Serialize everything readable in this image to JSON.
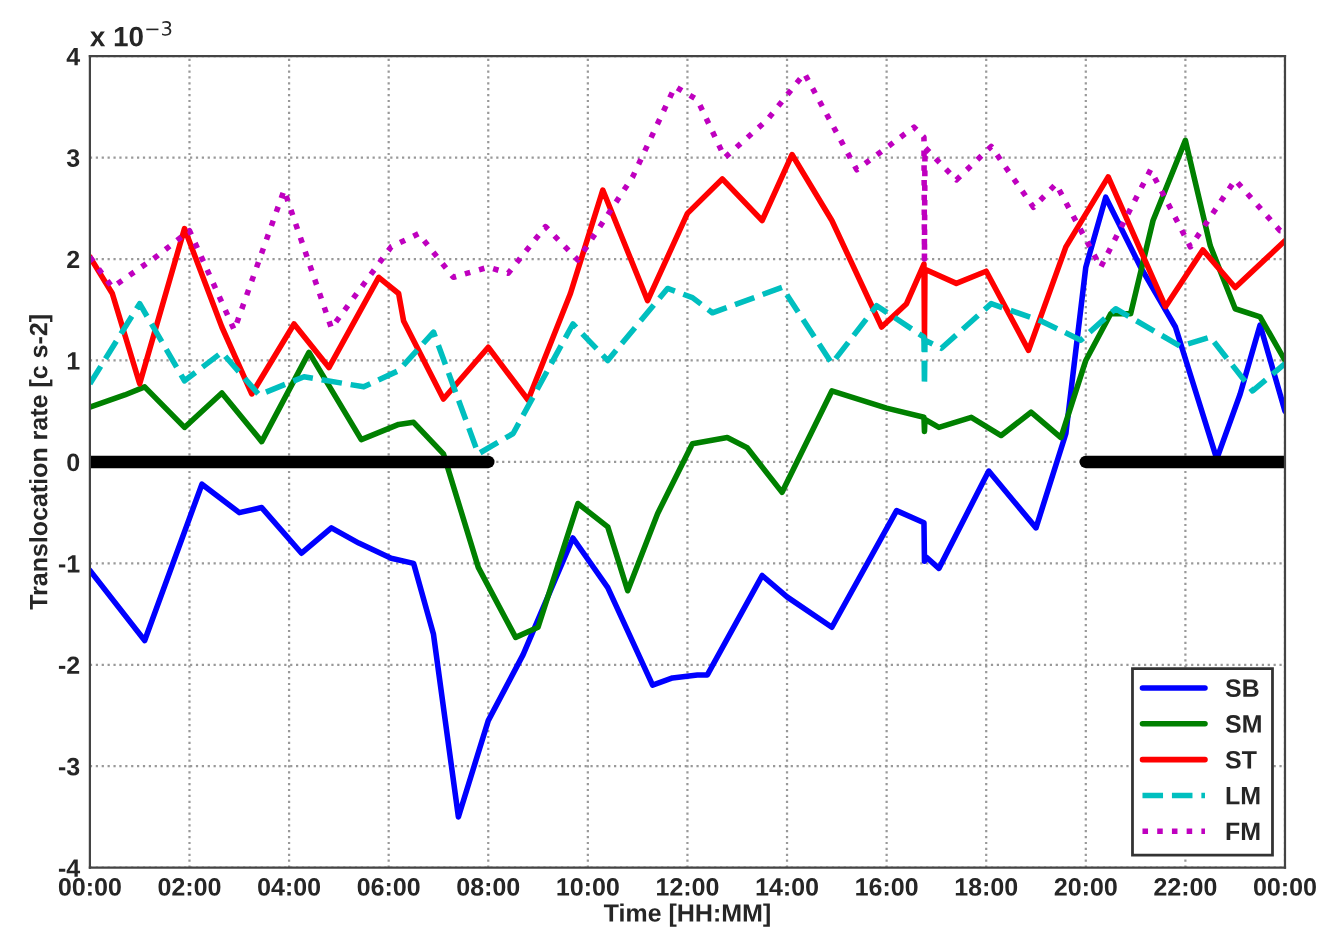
{
  "chart_data": {
    "type": "line",
    "xlabel": "Time [HH:MM]",
    "ylabel": "Translocation rate [c s-2]",
    "annotations": [
      "x 10$^{−3}$"
    ],
    "xlim": [
      0,
      24
    ],
    "ylim": [
      -4,
      4
    ],
    "xticks": [
      {
        "value": 0,
        "label": "00:00"
      },
      {
        "value": 2,
        "label": "02:00"
      },
      {
        "value": 4,
        "label": "04:00"
      },
      {
        "value": 6,
        "label": "06:00"
      },
      {
        "value": 8,
        "label": "08:00"
      },
      {
        "value": 10,
        "label": "10:00"
      },
      {
        "value": 12,
        "label": "12:00"
      },
      {
        "value": 14,
        "label": "14:00"
      },
      {
        "value": 16,
        "label": "16:00"
      },
      {
        "value": 18,
        "label": "18:00"
      },
      {
        "value": 20,
        "label": "20:00"
      },
      {
        "value": 22,
        "label": "22:00"
      },
      {
        "value": 24,
        "label": "00:00"
      }
    ],
    "yticks": [
      -4,
      -3,
      -2,
      -1,
      0,
      1,
      2,
      3,
      4
    ],
    "grid": true,
    "legend": "bottom right",
    "series": [
      {
        "name": "SB",
        "color": "#0000ff",
        "line_style": "solid",
        "x": [
          0,
          1.1,
          2.25,
          3.0,
          3.45,
          4.25,
          4.85,
          5.4,
          6.05,
          6.5,
          6.9,
          7.4,
          8,
          8.7,
          9.7,
          10.4,
          11.3,
          11.7,
          12.2,
          12.4,
          13.5,
          14,
          14.9,
          16.2,
          16.75,
          16.76,
          16.8,
          17.05,
          18.05,
          19.0,
          19.6,
          20,
          20.4,
          21.1,
          21.8,
          22.63,
          23.1,
          23.5,
          24
        ],
        "values": [
          -1.07,
          -1.76,
          -0.22,
          -0.5,
          -0.45,
          -0.9,
          -0.65,
          -0.8,
          -0.95,
          -1.0,
          -1.7,
          -3.5,
          -2.55,
          -1.9,
          -0.75,
          -1.24,
          -2.2,
          -2.13,
          -2.1,
          -2.1,
          -1.12,
          -1.33,
          -1.63,
          -0.48,
          -0.6,
          -0.98,
          -0.94,
          -1.05,
          -0.09,
          -0.65,
          0.28,
          1.92,
          2.61,
          1.92,
          1.33,
          0.03,
          0.67,
          1.35,
          0.5
        ]
      },
      {
        "name": "SM",
        "color": "#008000",
        "line_style": "solid",
        "x": [
          0,
          0.7,
          1.1,
          1.9,
          2.65,
          3.45,
          4.4,
          5.45,
          6.2,
          6.5,
          7.1,
          7.8,
          8.55,
          9.0,
          9.8,
          10.4,
          10.8,
          11.4,
          12.1,
          12.8,
          13.2,
          13.9,
          14.9,
          16,
          16.75,
          16.76,
          16.77,
          17.05,
          17.7,
          18.3,
          18.9,
          19.5,
          20,
          20.5,
          20.9,
          21.35,
          22,
          22.5,
          23,
          23.5,
          24
        ],
        "values": [
          0.54,
          0.66,
          0.74,
          0.34,
          0.68,
          0.2,
          1.08,
          0.22,
          0.37,
          0.39,
          0.08,
          -1.04,
          -1.73,
          -1.63,
          -0.41,
          -0.64,
          -1.27,
          -0.51,
          0.18,
          0.24,
          0.14,
          -0.3,
          0.7,
          0.53,
          0.44,
          0.3,
          0.42,
          0.34,
          0.44,
          0.26,
          0.49,
          0.24,
          1.0,
          1.46,
          1.46,
          2.38,
          3.17,
          2.13,
          1.51,
          1.43,
          1.0
        ]
      },
      {
        "name": "ST",
        "color": "#ff0000",
        "line_style": "solid",
        "x": [
          0,
          0.45,
          1,
          1.9,
          2.65,
          3.25,
          4.1,
          4.8,
          5.8,
          6.2,
          6.3,
          7.1,
          8,
          8.8,
          9.65,
          10.3,
          11.2,
          12,
          12.7,
          13.5,
          14.1,
          14.9,
          15.9,
          16.4,
          16.75,
          16.76,
          16.77,
          17.4,
          18,
          18.85,
          19.6,
          20.45,
          21.6,
          22.35,
          23,
          24
        ],
        "values": [
          2.02,
          1.66,
          0.77,
          2.3,
          1.33,
          0.67,
          1.36,
          0.93,
          1.82,
          1.66,
          1.39,
          0.62,
          1.13,
          0.61,
          1.66,
          2.68,
          1.59,
          2.45,
          2.79,
          2.38,
          3.03,
          2.38,
          1.33,
          1.56,
          1.95,
          1.2,
          1.9,
          1.76,
          1.88,
          1.1,
          2.12,
          2.81,
          1.53,
          2.09,
          1.72,
          2.18
        ]
      },
      {
        "name": "LM",
        "color": "#00bfbf",
        "line_style": "dashed",
        "x": [
          0,
          1,
          1.9,
          2.65,
          3.4,
          4.3,
          5.5,
          6.2,
          6.9,
          7.8,
          8.5,
          9.7,
          10.4,
          11.6,
          12.1,
          12.5,
          13.9,
          14.9,
          15.8,
          16.75,
          16.76,
          16.77,
          17.1,
          18.1,
          19.1,
          19.9,
          20.6,
          21.9,
          22.5,
          23.35,
          24
        ],
        "values": [
          0.77,
          1.56,
          0.8,
          1.08,
          0.66,
          0.84,
          0.74,
          0.9,
          1.28,
          0.08,
          0.28,
          1.36,
          1.0,
          1.71,
          1.62,
          1.47,
          1.72,
          0.97,
          1.54,
          1.23,
          0.75,
          1.2,
          1.12,
          1.56,
          1.39,
          1.2,
          1.51,
          1.14,
          1.23,
          0.7,
          0.97
        ]
      },
      {
        "name": "FM",
        "color": "#bf00bf",
        "line_style": "dotted",
        "x": [
          0,
          0.45,
          1.35,
          2,
          2.9,
          3.9,
          4.85,
          6.05,
          6.6,
          7.3,
          8,
          8.4,
          9.15,
          9.8,
          10.9,
          11.75,
          12.2,
          12.75,
          13.6,
          14.35,
          15.4,
          16.55,
          16.75,
          16.76,
          16.77,
          17.4,
          18.1,
          18.95,
          19.4,
          20.3,
          21.3,
          22.1,
          23,
          23.9,
          24
        ],
        "values": [
          2.02,
          1.72,
          2.03,
          2.28,
          1.3,
          2.68,
          1.32,
          2.12,
          2.25,
          1.82,
          1.92,
          1.86,
          2.32,
          1.99,
          2.81,
          3.7,
          3.57,
          3.0,
          3.37,
          3.83,
          2.88,
          3.3,
          3.2,
          2.0,
          3.1,
          2.78,
          3.11,
          2.51,
          2.74,
          1.92,
          2.88,
          2.12,
          2.78,
          2.28,
          2.28
        ]
      },
      {
        "color": "#000000",
        "line_style": "solid",
        "x": [
          0,
          8
        ],
        "values": [
          0,
          0
        ]
      },
      {
        "color": "#000000",
        "line_style": "solid",
        "x": [
          20,
          24
        ],
        "values": [
          0,
          0
        ]
      }
    ]
  }
}
